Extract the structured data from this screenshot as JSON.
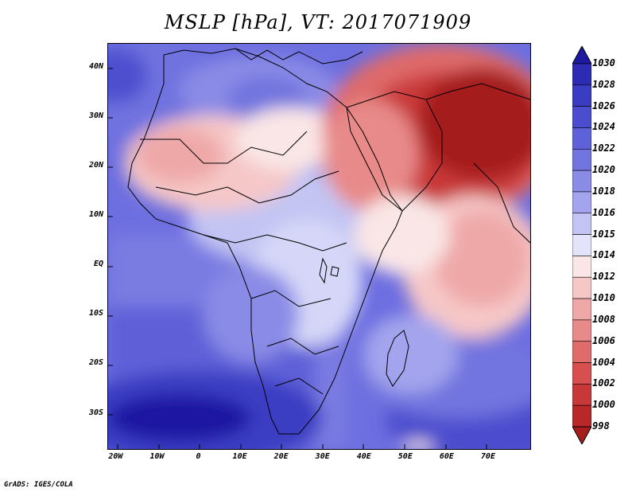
{
  "title": "MSLP [hPa], VT: 2017071909",
  "footer": "GrADS: IGES/COLA",
  "map": {
    "variable": "mean sea level pressure",
    "units": "hPa",
    "region": "Africa, Middle East and western Indian Ocean",
    "lat_range": [
      -37,
      45
    ],
    "lon_range": [
      -22,
      80
    ]
  },
  "latitude_ticks": [
    {
      "label": "40N",
      "value": 40
    },
    {
      "label": "30N",
      "value": 30
    },
    {
      "label": "20N",
      "value": 20
    },
    {
      "label": "10N",
      "value": 10
    },
    {
      "label": "EQ",
      "value": 0
    },
    {
      "label": "10S",
      "value": -10
    },
    {
      "label": "20S",
      "value": -20
    },
    {
      "label": "30S",
      "value": -30
    }
  ],
  "longitude_ticks": [
    {
      "label": "20W",
      "value": -20
    },
    {
      "label": "10W",
      "value": -10
    },
    {
      "label": "0",
      "value": 0
    },
    {
      "label": "10E",
      "value": 10
    },
    {
      "label": "20E",
      "value": 20
    },
    {
      "label": "30E",
      "value": 30
    },
    {
      "label": "40E",
      "value": 40
    },
    {
      "label": "50E",
      "value": 50
    },
    {
      "label": "60E",
      "value": 60
    },
    {
      "label": "70E",
      "value": 70
    }
  ],
  "colorbar": {
    "levels": [
      "1030",
      "1028",
      "1026",
      "1024",
      "1022",
      "1020",
      "1018",
      "1016",
      "1015",
      "1014",
      "1012",
      "1010",
      "1008",
      "1006",
      "1004",
      "1002",
      "1000",
      "998"
    ],
    "colors": [
      "#1e19a3",
      "#2d2ab4",
      "#3a3cc2",
      "#4b4dce",
      "#5e61d8",
      "#7274df",
      "#8a8be6",
      "#a3a4ed",
      "#c3c4f3",
      "#e3e3fa",
      "#fae6e6",
      "#f6c7c7",
      "#efa8a8",
      "#e88a8a",
      "#df6b6b",
      "#d84f4f",
      "#c93838",
      "#b82828",
      "#a51d1d"
    ],
    "top_arrow_color": "#1e19a3",
    "bottom_arrow_color": "#a51d1d"
  },
  "features": [
    {
      "label": "Subtropical high south of Africa",
      "pressure_hpa": 1030
    },
    {
      "label": "Heat low over Arabian Peninsula / Iran / Pakistan",
      "pressure_hpa": 998
    },
    {
      "label": "Saharan heat low",
      "pressure_hpa": 1008
    }
  ]
}
